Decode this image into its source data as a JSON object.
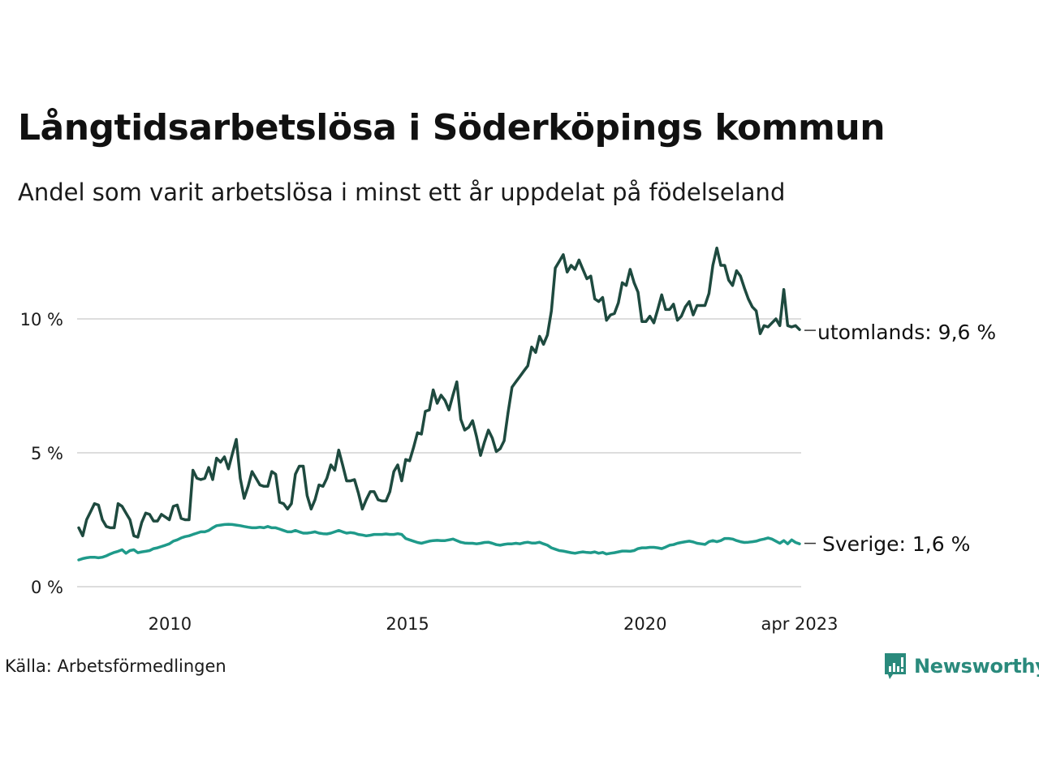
{
  "header": {
    "title": "Långtidsarbetslösa i Söderköpings kommun",
    "subtitle": "Andel som varit arbetslösa i minst ett år uppdelat på födelseland"
  },
  "footer": {
    "source": "Källa: Arbetsförmedlingen",
    "brand": "Newsworthy",
    "brand_icon": "bar-chart-speech-bubble-icon"
  },
  "colors": {
    "utomlands": "#1e4a3f",
    "sverige": "#1f9a8a",
    "grid": "#dddddd",
    "brand": "#2a8a7c"
  },
  "chart_data": {
    "type": "line",
    "title": "Långtidsarbetslösa i Söderköpings kommun",
    "subtitle": "Andel som varit arbetslösa i minst ett år uppdelat på födelseland",
    "xlabel": "",
    "ylabel": "",
    "x_start": "2008-02",
    "x_end": "2023-04",
    "frequency": "monthly",
    "xlim": [
      2008.08,
      2023.25
    ],
    "ylim": [
      0,
      13
    ],
    "grid": true,
    "y_ticks": [
      0,
      5,
      10
    ],
    "y_tick_labels": [
      "0 %",
      "5 %",
      "10 %"
    ],
    "x_ticks": [
      2010,
      2015,
      2020,
      2023.25
    ],
    "x_tick_labels": [
      "2010",
      "2015",
      "2020",
      "apr 2023"
    ],
    "series": [
      {
        "name": "utomlands",
        "end_label": "utomlands: 9,6 %",
        "values": [
          2.2,
          1.9,
          2.5,
          2.8,
          3.1,
          3.05,
          2.5,
          2.25,
          2.2,
          2.2,
          3.1,
          3.0,
          2.75,
          2.5,
          1.9,
          1.85,
          2.4,
          2.75,
          2.7,
          2.45,
          2.45,
          2.7,
          2.6,
          2.5,
          3.0,
          3.05,
          2.55,
          2.5,
          2.5,
          4.35,
          4.05,
          4.0,
          4.05,
          4.45,
          4.0,
          4.8,
          4.65,
          4.85,
          4.4,
          4.95,
          5.5,
          4.05,
          3.3,
          3.75,
          4.3,
          4.05,
          3.8,
          3.75,
          3.75,
          4.3,
          4.2,
          3.15,
          3.1,
          2.9,
          3.1,
          4.2,
          4.5,
          4.5,
          3.4,
          2.9,
          3.25,
          3.8,
          3.75,
          4.05,
          4.55,
          4.35,
          5.1,
          4.55,
          3.95,
          3.95,
          4.0,
          3.5,
          2.9,
          3.25,
          3.55,
          3.55,
          3.25,
          3.2,
          3.2,
          3.55,
          4.3,
          4.55,
          3.95,
          4.75,
          4.7,
          5.2,
          5.75,
          5.7,
          6.55,
          6.6,
          7.35,
          6.85,
          7.15,
          6.95,
          6.6,
          7.15,
          7.65,
          6.25,
          5.85,
          5.95,
          6.2,
          5.6,
          4.9,
          5.4,
          5.85,
          5.55,
          5.05,
          5.15,
          5.45,
          6.5,
          7.45,
          7.65,
          7.85,
          8.05,
          8.25,
          8.95,
          8.75,
          9.35,
          9.05,
          9.4,
          10.3,
          11.9,
          12.15,
          12.4,
          11.75,
          12.0,
          11.85,
          12.2,
          11.85,
          11.5,
          11.6,
          10.75,
          10.65,
          10.8,
          9.95,
          10.15,
          10.2,
          10.6,
          11.35,
          11.25,
          11.85,
          11.35,
          11.0,
          9.9,
          9.9,
          10.1,
          9.85,
          10.35,
          10.9,
          10.35,
          10.35,
          10.55,
          9.95,
          10.1,
          10.45,
          10.65,
          10.15,
          10.5,
          10.5,
          10.5,
          10.95,
          12.0,
          12.65,
          12.0,
          12.0,
          11.45,
          11.25,
          11.8,
          11.6,
          11.15,
          10.75,
          10.45,
          10.3,
          9.45,
          9.75,
          9.7,
          9.85,
          10.0,
          9.75,
          11.1,
          9.75,
          9.7,
          9.75,
          9.6
        ]
      },
      {
        "name": "Sverige",
        "end_label": "Sverige: 1,6 %",
        "values": [
          1.0,
          1.05,
          1.08,
          1.1,
          1.1,
          1.08,
          1.1,
          1.15,
          1.22,
          1.28,
          1.32,
          1.38,
          1.25,
          1.35,
          1.38,
          1.27,
          1.3,
          1.32,
          1.35,
          1.42,
          1.45,
          1.5,
          1.55,
          1.6,
          1.7,
          1.75,
          1.82,
          1.87,
          1.9,
          1.95,
          2.0,
          2.05,
          2.05,
          2.1,
          2.2,
          2.28,
          2.3,
          2.32,
          2.33,
          2.32,
          2.3,
          2.28,
          2.25,
          2.22,
          2.2,
          2.2,
          2.22,
          2.2,
          2.25,
          2.2,
          2.2,
          2.15,
          2.1,
          2.05,
          2.05,
          2.1,
          2.05,
          2.0,
          2.0,
          2.02,
          2.05,
          2.0,
          1.98,
          1.97,
          2.0,
          2.05,
          2.1,
          2.05,
          2.0,
          2.02,
          2.0,
          1.95,
          1.93,
          1.9,
          1.92,
          1.95,
          1.95,
          1.95,
          1.97,
          1.95,
          1.95,
          1.98,
          1.95,
          1.8,
          1.75,
          1.7,
          1.65,
          1.62,
          1.66,
          1.7,
          1.72,
          1.73,
          1.72,
          1.72,
          1.75,
          1.78,
          1.72,
          1.66,
          1.63,
          1.62,
          1.62,
          1.6,
          1.62,
          1.65,
          1.66,
          1.62,
          1.57,
          1.55,
          1.58,
          1.6,
          1.6,
          1.62,
          1.6,
          1.64,
          1.66,
          1.63,
          1.63,
          1.66,
          1.6,
          1.55,
          1.45,
          1.4,
          1.35,
          1.33,
          1.3,
          1.27,
          1.25,
          1.28,
          1.3,
          1.28,
          1.27,
          1.3,
          1.25,
          1.28,
          1.22,
          1.25,
          1.27,
          1.3,
          1.33,
          1.33,
          1.32,
          1.35,
          1.42,
          1.45,
          1.45,
          1.47,
          1.47,
          1.45,
          1.42,
          1.48,
          1.55,
          1.57,
          1.62,
          1.65,
          1.68,
          1.7,
          1.67,
          1.62,
          1.6,
          1.58,
          1.68,
          1.72,
          1.68,
          1.72,
          1.8,
          1.8,
          1.78,
          1.72,
          1.68,
          1.65,
          1.66,
          1.68,
          1.7,
          1.75,
          1.78,
          1.82,
          1.78,
          1.7,
          1.62,
          1.72,
          1.6,
          1.75,
          1.65,
          1.6
        ]
      }
    ]
  }
}
